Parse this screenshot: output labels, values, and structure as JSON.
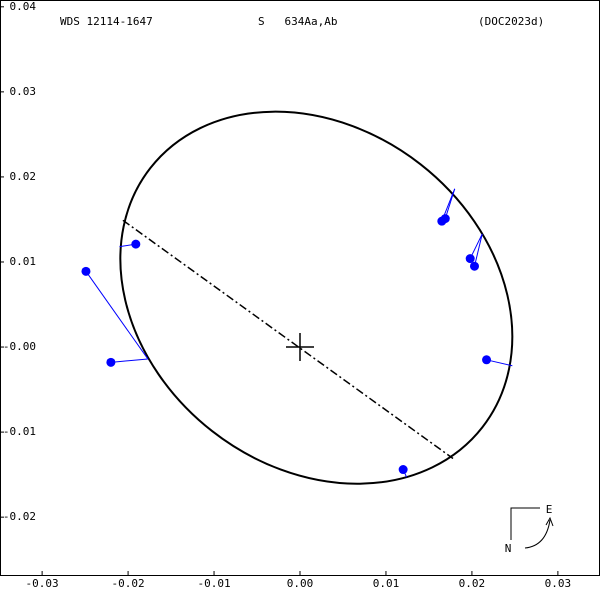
{
  "chart_data": {
    "type": "orbit",
    "header": [
      "WDS 12114-1647",
      "S   634Aa,Ab",
      "(DOC2023d)"
    ],
    "compass": {
      "east": "E",
      "north": "N"
    },
    "xlim": [
      -0.0349,
      0.0349
    ],
    "ylim": [
      -0.0268,
      0.0408
    ],
    "xticks": [
      -0.03,
      -0.02,
      -0.01,
      {
        "value": 0,
        "label": "0.00"
      },
      0.01,
      0.02,
      0.03
    ],
    "yticks": [
      0.04,
      0.03,
      0.02,
      0.01,
      {
        "value": 0,
        "label": "-0.00"
      },
      -0.01,
      -0.02
    ],
    "color": "#0000ff",
    "observed": {
      "x": [
        -0.0249,
        -0.0191,
        -0.022,
        0.0165,
        0.0169,
        0.0198,
        0.0203,
        0.0217,
        0.012
      ],
      "y": [
        0.0089,
        0.0121,
        -0.0018,
        0.0148,
        0.0151,
        0.0104,
        0.0095,
        -0.0015,
        -0.0144
      ]
    },
    "computed": {
      "x": [
        -0.0177,
        -0.021,
        -0.0177,
        0.018,
        0.018,
        0.0212,
        0.0212,
        0.0247,
        0.0124
      ],
      "y": [
        -0.0014,
        0.0118,
        -0.0014,
        0.0186,
        0.0186,
        0.0133,
        0.0133,
        -0.0022,
        -0.0153
      ]
    },
    "orbit": {
      "center": [
        0.0019,
        0.0058
      ],
      "semi_axes": [
        0.0245,
        0.0199
      ],
      "angle": -38
    },
    "node_line": {
      "x": [
        -0.0206,
        0.0178
      ],
      "y": [
        0.0149,
        -0.0131
      ]
    }
  }
}
